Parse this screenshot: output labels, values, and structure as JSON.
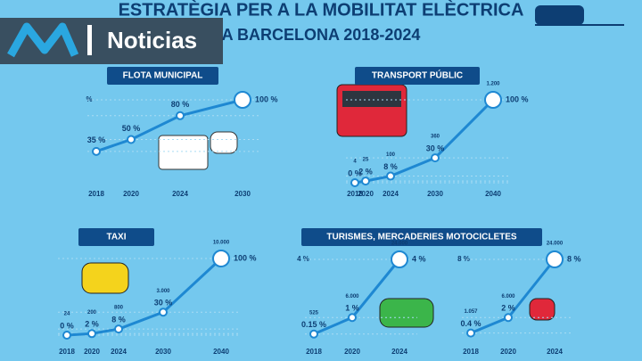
{
  "title": "ESTRATÈGIA PER A LA MOBILITAT ELÈCTRICA",
  "subtitle": "A BARCELONA 2018-2024",
  "logo": "Noticias",
  "chart_data": [
    {
      "type": "line",
      "title": "FLOTA MUNICIPAL",
      "ylabel": "%",
      "categories": [
        "2018",
        "2020",
        "2024",
        "2030"
      ],
      "values": [
        35,
        50,
        80,
        100
      ],
      "value_labels": [
        "35 %",
        "50 %",
        "80 %",
        "100 %"
      ],
      "ylim": [
        0,
        100
      ],
      "color": "#1e88d2"
    },
    {
      "type": "line",
      "title": "TRANSPORT PÚBLIC",
      "categories": [
        "2018",
        "2020",
        "2024",
        "2030",
        "2040"
      ],
      "values": [
        0,
        2,
        8,
        30,
        100
      ],
      "value_labels": [
        "0 %",
        "2 %",
        "8 %",
        "30 %",
        "100 %"
      ],
      "count_labels": [
        "4",
        "25",
        "100",
        "360",
        "1.200"
      ],
      "ylim": [
        0,
        100
      ],
      "color": "#1e88d2"
    },
    {
      "type": "line",
      "title": "TAXI",
      "categories": [
        "2018",
        "2020",
        "2024",
        "2030",
        "2040"
      ],
      "values": [
        0,
        2,
        8,
        30,
        100
      ],
      "value_labels": [
        "0 %",
        "2 %",
        "8 %",
        "30 %",
        "100 %"
      ],
      "count_labels": [
        "24",
        "200",
        "800",
        "3.000",
        "10.000"
      ],
      "ylim": [
        0,
        100
      ],
      "color": "#1e88d2"
    },
    {
      "type": "line",
      "title": "TURISMES, MERCADERIES MOTOCICLETES",
      "ylabel": "4 %",
      "categories": [
        "2018",
        "2020",
        "2024"
      ],
      "values": [
        0.15,
        1,
        4
      ],
      "value_labels": [
        "0.15 %",
        "1 %",
        "4 %"
      ],
      "count_labels": [
        "525",
        "6.000",
        "24.000"
      ],
      "ylim": [
        0,
        4
      ],
      "color": "#1e88d2"
    },
    {
      "type": "line",
      "ylabel": "8 %",
      "categories": [
        "2018",
        "2020",
        "2024"
      ],
      "values": [
        0.4,
        2,
        8
      ],
      "value_labels": [
        "0.4 %",
        "2 %",
        "8 %"
      ],
      "count_labels": [
        "1.057",
        "6.000",
        "24.000"
      ],
      "ylim": [
        0,
        8
      ],
      "color": "#1e88d2"
    }
  ]
}
